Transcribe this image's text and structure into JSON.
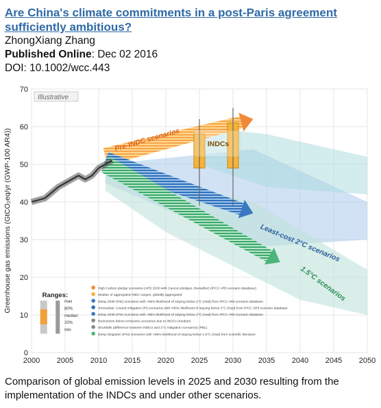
{
  "paper": {
    "title": "Are China's climate commitments in a post-Paris agreement sufficiently ambitious?",
    "author": "ZhongXiang Zhang",
    "published_label": "Published Online",
    "published_date": ": Dec 02 2016",
    "doi": "DOI: 10.1002/wcc.443",
    "caption": "Comparison of global emission levels in 2025 and 2030 resulting from the implementation of the INDCs and under other scenarios."
  },
  "chart_data": {
    "type": "area",
    "badge": "Illustrative",
    "ylabel": "Greenhouse gas emissions (GtCO₂eq/yr (GWP-100 AR4))",
    "xlim": [
      2000,
      2050
    ],
    "ylim": [
      0,
      70
    ],
    "xticks": [
      2000,
      2005,
      2010,
      2015,
      2020,
      2025,
      2030,
      2035,
      2040,
      2045,
      2050
    ],
    "yticks": [
      0,
      10,
      20,
      30,
      40,
      50,
      60,
      70
    ],
    "historical": {
      "x": [
        2000,
        2002,
        2004,
        2006,
        2007,
        2008,
        2009,
        2010,
        2011,
        2012
      ],
      "y": [
        40,
        41,
        44,
        46,
        47,
        46,
        47,
        49,
        50,
        51
      ]
    },
    "pre_indc": {
      "label": "Pre-INDC scenarios",
      "start": [
        2011,
        52
      ],
      "end": [
        2033,
        62
      ],
      "color": "#f08a3a"
    },
    "least_cost_2c": {
      "label": "Least-cost 2°C scenarios",
      "start": [
        2011,
        51
      ],
      "end": [
        2033,
        37
      ],
      "color": "#3a78c2"
    },
    "scen_1_5c": {
      "label": "1.5°C scenarios",
      "start": [
        2011,
        50
      ],
      "end": [
        2037,
        24
      ],
      "color": "#4cb47a"
    },
    "indcs": {
      "label": "INDCs",
      "bars": [
        {
          "year": 2025,
          "low": 49,
          "high": 58
        },
        {
          "year": 2030,
          "low": 49,
          "high": 61
        }
      ]
    },
    "ranges_title": "Ranges:",
    "ranges_labels": [
      "max",
      "80%",
      "median",
      "20%",
      "min"
    ],
    "legend": [
      "High Carbon pledge scenarios (AR5 2030 with Cancun pledges, thereafter) (IPCC AR5 scenario database)",
      "Median of aggregated INDC ranges, globally aggregated",
      "Delay 2030 (PSI) scenarios with >66% likelihood of staying below 2°C (Had) from IPCC AR5 scenario database",
      "'Immediate' 2-band mitigation (PI) scenarios with >66% likelihood of staying below 2°C (Had) from IPCC AR5 scenario database",
      "Delay 2030 (PSI) scenarios with >66% likelihood of staying below 2°C (Had) from IPCC AR5 scenario database",
      "Reductions below emissions scenarios due to INDCs (median)",
      "Shortfalls (difference between INDCs and 2°C mitigation scenarios) (PBL)",
      "Deep mitigation (PSI) scenarios with >66% likelihood of staying below 1.5°C (Had) from scientific literature"
    ],
    "colors": {
      "historical": "#333333",
      "band_blue": "#a9cbe9",
      "band_green": "#bfe3da",
      "band_teal": "#a7d9de",
      "indc_bar": "#f4b23a"
    }
  }
}
